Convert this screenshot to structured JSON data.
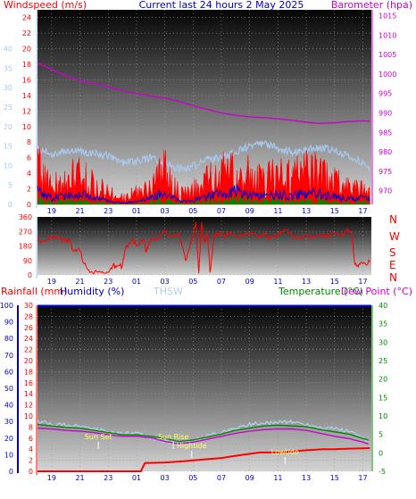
{
  "header": {
    "left_label": "Windspeed (m/s)",
    "center_label": "Current last 24 hours 2 May 2025",
    "right_label": "Barometer (hpa)"
  },
  "bottom_header": {
    "rainfall_label": "Rainfall (mm)",
    "humidity_label": "Humidity (%)",
    "thsw_label": "THSW",
    "temperature_label": "Temperature (°C)",
    "dewpoint_label": "Dew Point (°C)"
  },
  "direction_labels": [
    "N",
    "W",
    "S",
    "E",
    "N"
  ],
  "time_ticks": [
    "19",
    "21",
    "23",
    "01",
    "03",
    "05",
    "07",
    "09",
    "11",
    "13",
    "15",
    "17"
  ],
  "event_labels": {
    "sunset": "Sun Set",
    "sunrise": "Sun Rise",
    "hightide": "Hightide",
    "lowtide": "Lowtide"
  },
  "colors": {
    "windspeed": "#ff0000",
    "gust_band": "#a8c8f0",
    "wind_avg": "#0000cc",
    "wind_green": "#008800",
    "barometer": "#cc00cc",
    "direction": "#ff0000",
    "rainfall": "#ff0000",
    "humidity": "#0000ff",
    "thsw": "#b0d0f0",
    "temperature": "#008800",
    "dewpoint": "#cc00cc",
    "event_label": "#ffff66"
  },
  "chart_data": [
    {
      "type": "line",
      "title": "Current last 24 hours 2 May 2025",
      "x_ticks": [
        "19",
        "21",
        "23",
        "01",
        "03",
        "05",
        "07",
        "09",
        "11",
        "13",
        "15",
        "17"
      ],
      "ylabel_left": "Windspeed (m/s)",
      "ylim_left": [
        0,
        25
      ],
      "y_ticks_left": [
        0,
        2,
        4,
        6,
        8,
        10,
        12,
        14,
        16,
        18,
        20,
        22,
        24
      ],
      "ylabel_right": "Barometer (hpa)",
      "ylim_right": [
        966.5,
        1016.5
      ],
      "y_ticks_right": [
        970,
        975,
        980,
        985,
        990,
        995,
        1000,
        1005,
        1010,
        1015
      ],
      "series": [
        {
          "name": "Barometer (hpa)",
          "axis": "right",
          "x": [
            18.0,
            19.0,
            20.0,
            21.0,
            22.0,
            23.0,
            24.0,
            25.0,
            26.0,
            27.0,
            28.0,
            29.0,
            30.0,
            31.0,
            32.0,
            33.0,
            34.0,
            35.0,
            36.0,
            37.0,
            38.0,
            39.0,
            40.0,
            41.0,
            41.5
          ],
          "values": [
            1002.8,
            1001.2,
            999.6,
            998.4,
            997.6,
            996.8,
            995.8,
            995.0,
            994.4,
            993.8,
            993.0,
            991.9,
            990.9,
            990.0,
            989.4,
            989.0,
            988.8,
            988.5,
            988.1,
            987.6,
            987.3,
            987.5,
            987.8,
            988.0,
            987.9
          ]
        },
        {
          "name": "Gust",
          "axis": "left",
          "x": [
            18.0,
            19.0,
            20.0,
            21.0,
            22.0,
            23.0,
            24.0,
            25.0,
            26.0,
            27.0,
            28.0,
            29.0,
            30.0,
            31.0,
            32.0,
            33.0,
            34.0,
            35.0,
            36.0,
            37.0,
            38.0,
            39.0,
            40.0,
            41.0,
            41.5
          ],
          "values": [
            7.2,
            6.4,
            6.9,
            6.9,
            6.5,
            6.2,
            5.4,
            5.5,
            6.0,
            5.3,
            4.6,
            4.9,
            5.7,
            6.0,
            6.8,
            7.4,
            7.9,
            7.1,
            6.7,
            7.0,
            7.4,
            6.9,
            6.3,
            5.4,
            4.3
          ]
        },
        {
          "name": "Windspeed",
          "axis": "left",
          "x": [
            18.0,
            19.0,
            20.0,
            21.0,
            22.0,
            23.0,
            24.0,
            25.0,
            26.0,
            27.0,
            28.0,
            29.0,
            30.0,
            31.0,
            32.0,
            33.0,
            34.0,
            35.0,
            36.0,
            37.0,
            38.0,
            39.0,
            40.0,
            41.0,
            41.5
          ],
          "values": [
            5.0,
            2.6,
            3.4,
            3.9,
            2.5,
            1.6,
            0.9,
            1.5,
            2.2,
            4.5,
            1.5,
            1.8,
            3.1,
            3.9,
            5.1,
            3.7,
            3.2,
            3.6,
            3.5,
            4.3,
            3.9,
            3.2,
            2.0,
            1.8,
            1.3
          ]
        },
        {
          "name": "Average",
          "axis": "left",
          "x": [
            18.0,
            19.0,
            20.0,
            21.0,
            22.0,
            23.0,
            24.0,
            25.0,
            26.0,
            27.0,
            28.0,
            29.0,
            30.0,
            31.0,
            32.0,
            33.0,
            34.0,
            35.0,
            36.0,
            37.0,
            38.0,
            39.0,
            40.0,
            41.0,
            41.5
          ],
          "values": [
            1.6,
            0.8,
            1.1,
            1.3,
            0.9,
            0.4,
            0.2,
            0.4,
            0.8,
            1.6,
            0.4,
            0.5,
            1.0,
            1.4,
            1.8,
            1.2,
            1.1,
            1.3,
            1.1,
            1.5,
            1.3,
            1.0,
            0.7,
            0.8,
            0.7
          ]
        }
      ]
    },
    {
      "type": "line",
      "ylabel_left": "",
      "ylim_left": [
        0,
        360
      ],
      "y_ticks_left": [
        0,
        90,
        180,
        270,
        360
      ],
      "right_labels": [
        "N",
        "W",
        "S",
        "E",
        "N"
      ],
      "series": [
        {
          "name": "Wind direction",
          "x": [
            18.0,
            18.5,
            19.0,
            19.5,
            20.0,
            20.3,
            20.5,
            21.0,
            21.3,
            21.7,
            22.5,
            23.0,
            23.3,
            23.6,
            24.0,
            24.2,
            24.7,
            25.0,
            25.5,
            25.7,
            26.0,
            26.5,
            27.0,
            27.5,
            28.0,
            28.2,
            28.5,
            28.8,
            29.0,
            29.2,
            29.4,
            29.6,
            29.8,
            30.0,
            30.2,
            30.5,
            31.0,
            31.3,
            31.5,
            32.0,
            32.5,
            33.0,
            33.5,
            34.0,
            34.5,
            35.0,
            35.5,
            36.0,
            36.5,
            37.0,
            37.5,
            38.0,
            38.5,
            39.0,
            39.5,
            40.0,
            40.2,
            40.4,
            40.6,
            41.0,
            41.5
          ],
          "values": [
            210,
            215,
            240,
            230,
            205,
            215,
            150,
            150,
            70,
            15,
            15,
            15,
            55,
            55,
            55,
            160,
            225,
            180,
            220,
            140,
            220,
            230,
            270,
            240,
            260,
            180,
            90,
            190,
            250,
            330,
            10,
            320,
            200,
            260,
            15,
            250,
            260,
            230,
            260,
            240,
            250,
            260,
            240,
            250,
            230,
            250,
            280,
            240,
            230,
            250,
            230,
            250,
            240,
            260,
            250,
            280,
            270,
            80,
            60,
            70,
            80
          ]
        }
      ]
    },
    {
      "type": "line",
      "ylabel_left": "Rainfall (mm)",
      "ylim_left": [
        0,
        30
      ],
      "y_ticks_left": [
        0,
        2,
        4,
        6,
        8,
        10,
        12,
        14,
        16,
        18,
        20,
        22,
        24,
        26,
        28,
        30
      ],
      "ylabel_humidity": "Humidity (%)",
      "y_ticks_humidity": [
        0,
        10,
        20,
        30,
        40,
        50,
        60,
        70,
        80,
        90,
        100
      ],
      "ylabel_right": "Temperature (°C)",
      "ylim_right": [
        -5,
        40
      ],
      "y_ticks_right": [
        -5,
        0,
        5,
        10,
        15,
        20,
        25,
        30,
        35,
        40
      ],
      "series": [
        {
          "name": "THSW",
          "x": [
            18.0,
            19.0,
            20.0,
            21.0,
            22.0,
            23.0,
            24.0,
            25.0,
            26.0,
            27.0,
            28.0,
            29.0,
            30.0,
            31.0,
            32.0,
            33.0,
            34.0,
            35.0,
            36.0,
            37.0,
            38.0,
            39.0,
            40.0,
            41.0,
            41.5
          ],
          "values": [
            8.6,
            7.8,
            7.5,
            7.2,
            6.5,
            5.6,
            5.2,
            5.2,
            4.1,
            3.2,
            2.4,
            3.1,
            4.6,
            5.5,
            6.7,
            7.8,
            8.0,
            8.4,
            8.4,
            7.7,
            6.9,
            6.6,
            5.8,
            4.1,
            3.1
          ]
        },
        {
          "name": "Temperature (°C)",
          "x": [
            18.0,
            19.0,
            20.0,
            21.0,
            22.0,
            23.0,
            24.0,
            25.0,
            26.0,
            27.0,
            28.0,
            29.0,
            30.0,
            31.0,
            32.0,
            33.0,
            34.0,
            35.0,
            36.0,
            37.0,
            38.0,
            39.0,
            40.0,
            41.0,
            41.5
          ],
          "values": [
            7.7,
            7.3,
            6.9,
            6.7,
            6.1,
            5.5,
            4.9,
            4.9,
            4.5,
            3.9,
            3.1,
            3.5,
            4.3,
            5.1,
            6.1,
            6.7,
            7.3,
            7.5,
            7.3,
            7.1,
            6.3,
            5.7,
            5.1,
            3.9,
            3.3
          ]
        },
        {
          "name": "Dew Point (°C)",
          "x": [
            18.0,
            19.0,
            20.0,
            21.0,
            22.0,
            23.0,
            24.0,
            25.0,
            26.0,
            27.0,
            28.0,
            29.0,
            30.0,
            31.0,
            32.0,
            33.0,
            34.0,
            35.0,
            36.0,
            37.0,
            38.0,
            39.0,
            40.0,
            41.0,
            41.5
          ],
          "values": [
            6.7,
            6.5,
            6.1,
            5.9,
            5.5,
            4.9,
            4.5,
            4.5,
            4.1,
            3.1,
            2.5,
            2.9,
            3.7,
            4.5,
            5.3,
            5.9,
            6.3,
            6.5,
            6.5,
            6.1,
            5.3,
            4.5,
            3.9,
            2.9,
            2.3
          ]
        },
        {
          "name": "Rainfall (mm)",
          "x": [
            18.0,
            25.3,
            25.6,
            27.0,
            28.3,
            30.0,
            31.0,
            32.0,
            33.7,
            35.0,
            36.0,
            37.0,
            38.2,
            39.0,
            40.0,
            41.5
          ],
          "values": [
            0.0,
            0.0,
            1.5,
            1.6,
            1.8,
            2.2,
            2.4,
            2.8,
            3.4,
            3.4,
            3.6,
            3.8,
            4.0,
            4.0,
            4.1,
            4.2
          ]
        }
      ],
      "events": [
        {
          "label": "Sun Set",
          "x": 22.3
        },
        {
          "label": "Sun Rise",
          "x": 27.6
        },
        {
          "label": "Hightide",
          "x": 28.9
        },
        {
          "label": "Lowtide",
          "x": 35.5
        }
      ]
    }
  ]
}
